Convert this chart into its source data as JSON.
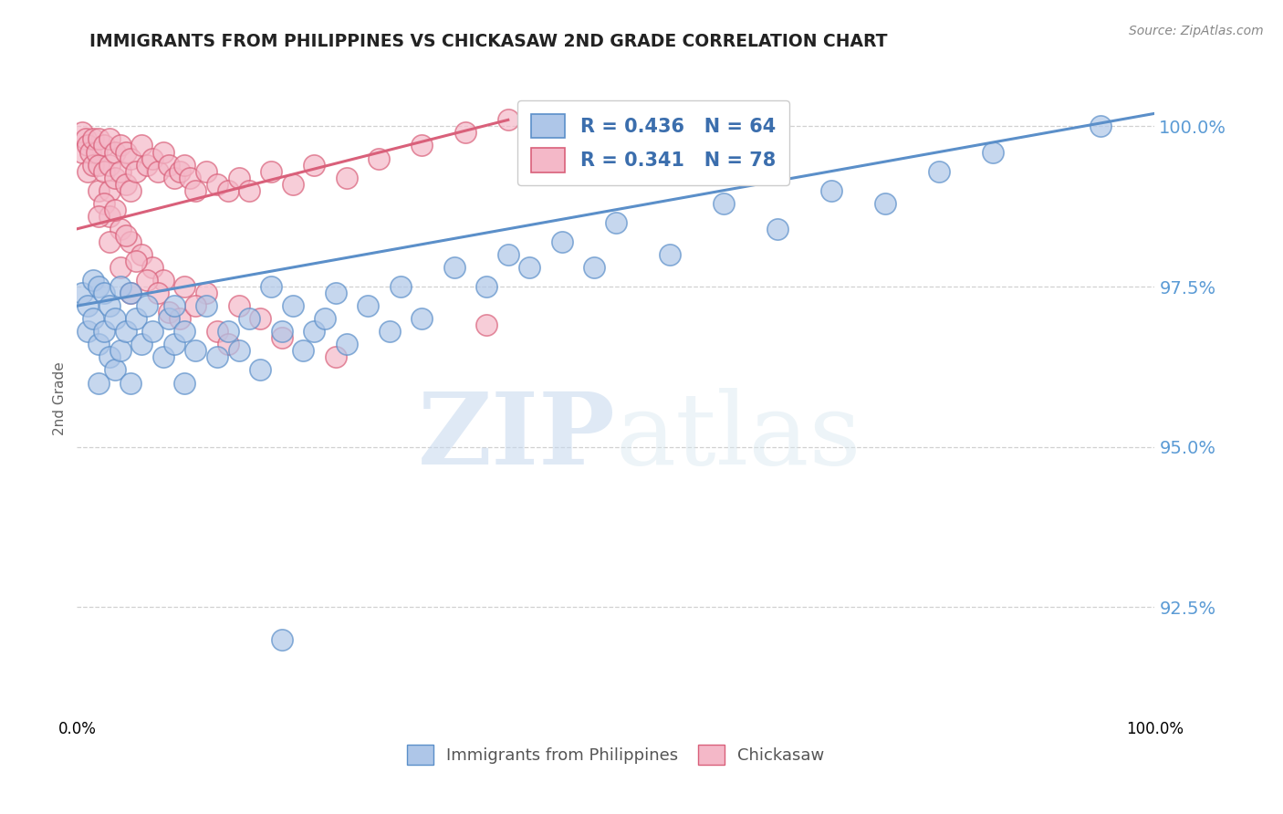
{
  "title": "IMMIGRANTS FROM PHILIPPINES VS CHICKASAW 2ND GRADE CORRELATION CHART",
  "source": "Source: ZipAtlas.com",
  "ylabel": "2nd Grade",
  "watermark_zip": "ZIP",
  "watermark_atlas": "atlas",
  "blue_R": 0.436,
  "blue_N": 64,
  "pink_R": 0.341,
  "pink_N": 78,
  "blue_color": "#aec6e8",
  "blue_edge_color": "#5b8fc9",
  "pink_color": "#f4b8c8",
  "pink_edge_color": "#d9607a",
  "legend_blue_label": "Immigrants from Philippines",
  "legend_pink_label": "Chickasaw",
  "ytick_labels": [
    "92.5%",
    "95.0%",
    "97.5%",
    "100.0%"
  ],
  "ytick_values": [
    0.925,
    0.95,
    0.975,
    1.0
  ],
  "ymin": 0.908,
  "ymax": 1.007,
  "xmin": 0.0,
  "xmax": 1.0,
  "blue_trend_x0": 0.0,
  "blue_trend_x1": 1.0,
  "blue_trend_y0": 0.972,
  "blue_trend_y1": 1.002,
  "pink_trend_x0": 0.0,
  "pink_trend_x1": 0.4,
  "pink_trend_y0": 0.984,
  "pink_trend_y1": 1.001,
  "blue_scatter_x": [
    0.005,
    0.01,
    0.01,
    0.015,
    0.015,
    0.02,
    0.02,
    0.02,
    0.025,
    0.025,
    0.03,
    0.03,
    0.035,
    0.035,
    0.04,
    0.04,
    0.045,
    0.05,
    0.05,
    0.055,
    0.06,
    0.065,
    0.07,
    0.08,
    0.085,
    0.09,
    0.09,
    0.1,
    0.1,
    0.11,
    0.12,
    0.13,
    0.14,
    0.15,
    0.16,
    0.17,
    0.18,
    0.19,
    0.2,
    0.21,
    0.22,
    0.23,
    0.24,
    0.25,
    0.27,
    0.29,
    0.3,
    0.32,
    0.35,
    0.38,
    0.4,
    0.42,
    0.45,
    0.48,
    0.5,
    0.55,
    0.6,
    0.65,
    0.7,
    0.75,
    0.8,
    0.85,
    0.19,
    0.95
  ],
  "blue_scatter_y": [
    0.974,
    0.972,
    0.968,
    0.976,
    0.97,
    0.975,
    0.966,
    0.96,
    0.974,
    0.968,
    0.972,
    0.964,
    0.97,
    0.962,
    0.975,
    0.965,
    0.968,
    0.974,
    0.96,
    0.97,
    0.966,
    0.972,
    0.968,
    0.964,
    0.97,
    0.972,
    0.966,
    0.968,
    0.96,
    0.965,
    0.972,
    0.964,
    0.968,
    0.965,
    0.97,
    0.962,
    0.975,
    0.968,
    0.972,
    0.965,
    0.968,
    0.97,
    0.974,
    0.966,
    0.972,
    0.968,
    0.975,
    0.97,
    0.978,
    0.975,
    0.98,
    0.978,
    0.982,
    0.978,
    0.985,
    0.98,
    0.988,
    0.984,
    0.99,
    0.988,
    0.993,
    0.996,
    0.92,
    1.0
  ],
  "pink_scatter_x": [
    0.005,
    0.005,
    0.008,
    0.01,
    0.01,
    0.012,
    0.015,
    0.015,
    0.018,
    0.02,
    0.02,
    0.02,
    0.025,
    0.025,
    0.03,
    0.03,
    0.03,
    0.035,
    0.035,
    0.04,
    0.04,
    0.045,
    0.045,
    0.05,
    0.05,
    0.055,
    0.06,
    0.065,
    0.07,
    0.075,
    0.08,
    0.085,
    0.09,
    0.095,
    0.1,
    0.105,
    0.11,
    0.12,
    0.13,
    0.14,
    0.15,
    0.16,
    0.18,
    0.2,
    0.22,
    0.25,
    0.28,
    0.32,
    0.36,
    0.4,
    0.025,
    0.03,
    0.04,
    0.05,
    0.06,
    0.07,
    0.08,
    0.1,
    0.12,
    0.15,
    0.02,
    0.03,
    0.04,
    0.05,
    0.035,
    0.045,
    0.055,
    0.065,
    0.075,
    0.085,
    0.095,
    0.11,
    0.13,
    0.14,
    0.17,
    0.19,
    0.24,
    0.38
  ],
  "pink_scatter_y": [
    0.999,
    0.996,
    0.998,
    0.997,
    0.993,
    0.996,
    0.998,
    0.994,
    0.996,
    0.998,
    0.994,
    0.99,
    0.997,
    0.993,
    0.998,
    0.994,
    0.99,
    0.996,
    0.992,
    0.997,
    0.993,
    0.996,
    0.991,
    0.995,
    0.99,
    0.993,
    0.997,
    0.994,
    0.995,
    0.993,
    0.996,
    0.994,
    0.992,
    0.993,
    0.994,
    0.992,
    0.99,
    0.993,
    0.991,
    0.99,
    0.992,
    0.99,
    0.993,
    0.991,
    0.994,
    0.992,
    0.995,
    0.997,
    0.999,
    1.001,
    0.988,
    0.986,
    0.984,
    0.982,
    0.98,
    0.978,
    0.976,
    0.975,
    0.974,
    0.972,
    0.986,
    0.982,
    0.978,
    0.974,
    0.987,
    0.983,
    0.979,
    0.976,
    0.974,
    0.971,
    0.97,
    0.972,
    0.968,
    0.966,
    0.97,
    0.967,
    0.964,
    0.969
  ]
}
